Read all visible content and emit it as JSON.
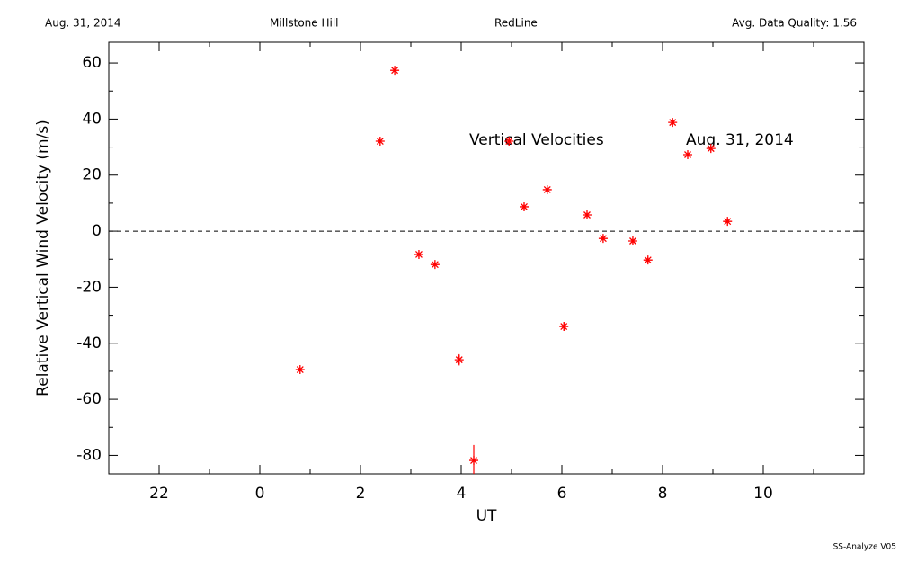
{
  "header": {
    "date": "Aug. 31, 2014",
    "site": "Millstone Hill",
    "instrument": "RedLine",
    "quality": "Avg. Data Quality: 1.56"
  },
  "footer": "SS-Analyze V05",
  "chart_data": {
    "type": "scatter",
    "annotations": [
      "Vertical Velocities",
      "Aug. 31, 2014"
    ],
    "xlabel": "UT",
    "ylabel": "Relative Vertical Wind Velocity (m/s)",
    "xlim": [
      -3,
      12
    ],
    "ylim": [
      -86.6,
      67.4
    ],
    "xticks": [
      {
        "value": -2,
        "label": "22"
      },
      0,
      2,
      4,
      6,
      8,
      10
    ],
    "xminorticks": [
      -3,
      -1,
      1,
      3,
      5,
      7,
      9,
      11
    ],
    "yticks": [
      -80,
      -60,
      -40,
      -20,
      0,
      20,
      40,
      60
    ],
    "yminorticks": [
      -70,
      -50,
      -30,
      -10,
      10,
      30,
      50
    ],
    "series": [
      {
        "color": "#ff0000",
        "x": [
          0.8,
          2.39,
          2.68,
          3.16,
          3.48,
          3.96,
          4.25,
          4.95,
          5.25,
          5.71,
          6.04,
          6.5,
          6.82,
          7.41,
          7.71,
          8.2,
          8.5,
          8.96,
          9.29
        ],
        "y": [
          -49.4,
          32.1,
          57.4,
          -8.3,
          -11.9,
          -45.9,
          -81.8,
          32.1,
          8.7,
          14.8,
          -34.0,
          5.8,
          -2.6,
          -3.5,
          -10.3,
          38.8,
          27.3,
          29.5,
          3.5
        ],
        "errors": [
          1,
          1,
          1,
          1,
          1,
          2,
          5.5,
          1,
          1,
          1,
          1.5,
          1,
          1,
          1,
          1,
          1,
          1,
          1,
          1
        ]
      }
    ]
  }
}
